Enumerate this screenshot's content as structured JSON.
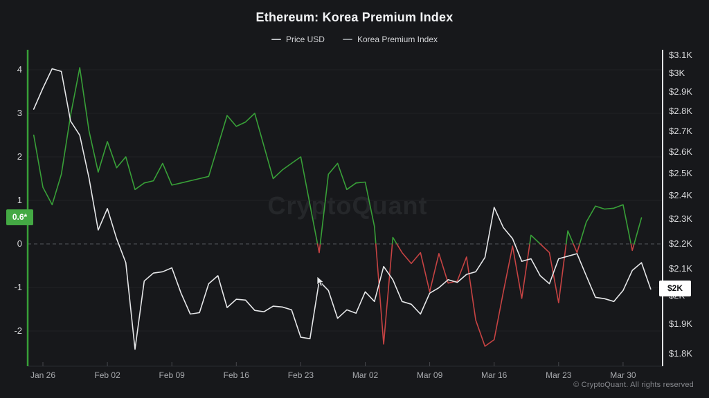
{
  "title": "Ethereum: Korea Premium Index",
  "legend": {
    "items": [
      {
        "label": "Price USD",
        "swatch": "#b9bcc0"
      },
      {
        "label": "Korea Premium Index",
        "swatch": "#8f9296"
      }
    ]
  },
  "watermark": "CryptoQuant",
  "footer": "© CryptoQuant. All rights reserved",
  "badges": {
    "premium": {
      "text": "0.6*",
      "bg": "#44a944"
    },
    "price": {
      "text": "$2K",
      "bg": "#ffffff"
    }
  },
  "chart_data": {
    "type": "line",
    "title": "Ethereum: Korea Premium Index",
    "grid": "horizontal",
    "x_axis": {
      "tick_labels": [
        "Jan 26",
        "Feb 02",
        "Feb 09",
        "Feb 16",
        "Feb 23",
        "Mar 02",
        "Mar 09",
        "Mar 16",
        "Mar 23",
        "Mar 30"
      ],
      "tick_days": [
        1,
        8,
        15,
        22,
        29,
        36,
        43,
        50,
        57,
        64
      ]
    },
    "left_axis": {
      "title": "Korea Premium Index",
      "ticks": [
        4,
        3,
        2,
        1,
        0,
        -1,
        -2
      ],
      "range": [
        -2.6,
        4.4
      ],
      "zero_line": "dashed",
      "axis_color": "#38a038"
    },
    "right_axis": {
      "title": "Price USD",
      "tick_labels": [
        "$3.1K",
        "$3K",
        "$2.9K",
        "$2.8K",
        "$2.7K",
        "$2.6K",
        "$2.5K",
        "$2.4K",
        "$2.3K",
        "$2.2K",
        "$2.1K",
        "$2K",
        "$1.9K",
        "$1.8K"
      ],
      "tick_values": [
        3100,
        3000,
        2900,
        2800,
        2700,
        2600,
        2500,
        2400,
        2300,
        2200,
        2100,
        2000,
        1900,
        1800
      ],
      "scale": "log",
      "range": [
        1780,
        3140
      ],
      "axis_color": "#e2e3e5"
    },
    "series": [
      {
        "name": "Price USD",
        "axis": "right",
        "color": "#e6e7e9",
        "last_label": "$2K",
        "values": [
          2810,
          2920,
          3025,
          3010,
          2750,
          2680,
          2480,
          2255,
          2345,
          2220,
          2125,
          1815,
          2055,
          2085,
          2090,
          2105,
          2010,
          1935,
          1940,
          2045,
          2075,
          1958,
          1988,
          1985,
          1948,
          1943,
          1963,
          1960,
          1950,
          1855,
          1850,
          2055,
          2020,
          1920,
          1950,
          1938,
          2015,
          1980,
          2110,
          2060,
          1980,
          1970,
          1935,
          2010,
          2030,
          2060,
          2050,
          2080,
          2090,
          2145,
          2350,
          2265,
          2220,
          2130,
          2140,
          2075,
          2045,
          2140,
          2150,
          2160,
          2075,
          1995,
          1990,
          1980,
          2020,
          2095,
          2125,
          2025
        ]
      },
      {
        "name": "Korea Premium Index",
        "axis": "left",
        "color_positive": "#38a038",
        "color_negative": "#c74343",
        "last_label": "0.6*",
        "values": [
          2.5,
          1.3,
          0.9,
          1.6,
          2.95,
          4.05,
          2.6,
          1.65,
          2.35,
          1.75,
          2.0,
          1.25,
          1.4,
          1.45,
          1.85,
          1.35,
          1.4,
          1.45,
          1.5,
          1.55,
          2.25,
          2.95,
          2.7,
          2.8,
          3.0,
          2.25,
          1.5,
          1.7,
          1.85,
          2.0,
          0.9,
          -0.2,
          1.6,
          1.85,
          1.25,
          1.4,
          1.42,
          0.4,
          -2.3,
          0.15,
          -0.2,
          -0.45,
          -0.2,
          -1.1,
          -0.22,
          -0.9,
          -0.85,
          -0.3,
          -1.75,
          -2.35,
          -2.2,
          -1.1,
          -0.05,
          -1.25,
          0.2,
          0.0,
          -0.2,
          -1.35,
          0.3,
          -0.2,
          0.5,
          0.87,
          0.8,
          0.82,
          0.9,
          -0.15,
          0.6
        ]
      }
    ]
  }
}
